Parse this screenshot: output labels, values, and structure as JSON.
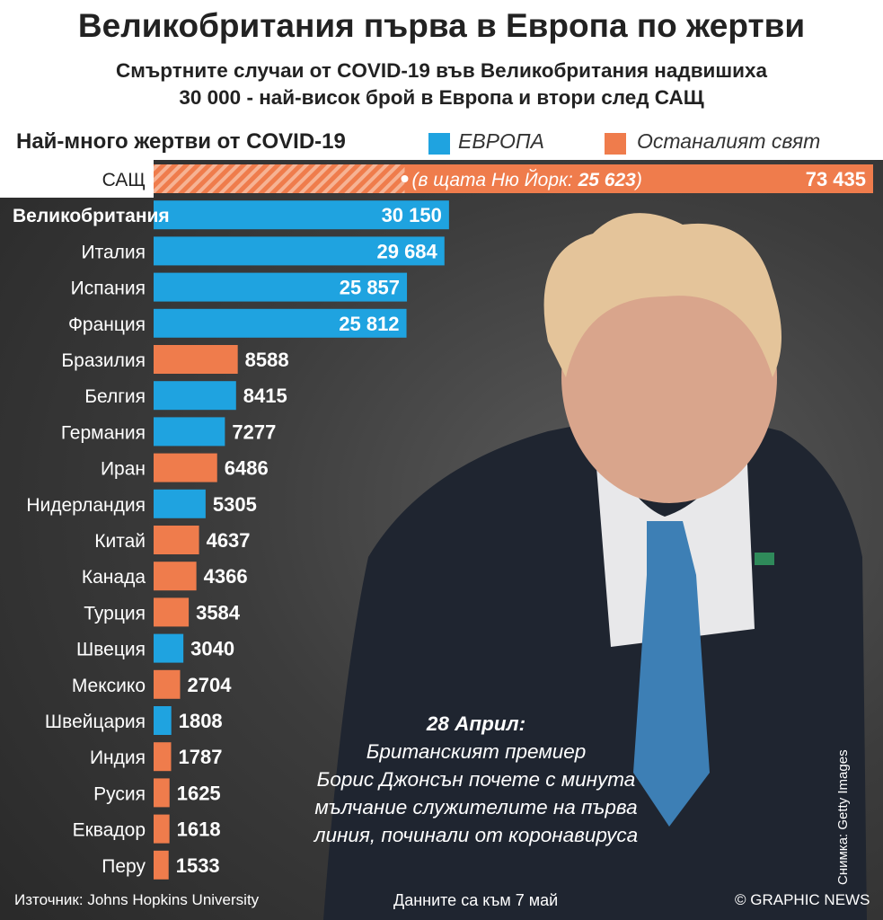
{
  "header": {
    "title": "Великобритания първа в Европа по жертви",
    "subtitle_line1": "Смъртните случаи от COVID-19 във Великобритания надвишиха",
    "subtitle_line2": "30 000 - най-висок брой в Европа и втори след САЩ"
  },
  "legend": {
    "label": "Най-много жертви от COVID-19",
    "europe": "ЕВРОПА",
    "rest": "Останалият свят"
  },
  "colors": {
    "europe": "#1fa3e0",
    "rest": "#ef7c4c"
  },
  "chart_data": {
    "type": "bar",
    "orientation": "horizontal",
    "title": "Най-много жертви от COVID-19",
    "xlim": [
      0,
      73435
    ],
    "categories": [
      "САЩ",
      "Великобритания",
      "Италия",
      "Испания",
      "Франция",
      "Бразилия",
      "Белгия",
      "Германия",
      "Иран",
      "Нидерландия",
      "Китай",
      "Канада",
      "Турция",
      "Швеция",
      "Мексико",
      "Швейцария",
      "Индия",
      "Русия",
      "Еквадор",
      "Перу"
    ],
    "labels": [
      "73 435",
      "30 150",
      "29 684",
      "25 857",
      "25 812",
      "8588",
      "8415",
      "7277",
      "6486",
      "5305",
      "4637",
      "4366",
      "3584",
      "3040",
      "2704",
      "1808",
      "1787",
      "1625",
      "1618",
      "1533"
    ],
    "values": [
      73435,
      30150,
      29684,
      25857,
      25812,
      8588,
      8415,
      7277,
      6486,
      5305,
      4637,
      4366,
      3584,
      3040,
      2704,
      1808,
      1787,
      1625,
      1618,
      1533
    ],
    "region": [
      "rest",
      "europe",
      "europe",
      "europe",
      "europe",
      "rest",
      "europe",
      "europe",
      "rest",
      "europe",
      "rest",
      "rest",
      "rest",
      "europe",
      "rest",
      "europe",
      "rest",
      "rest",
      "rest",
      "rest"
    ],
    "highlight": "Великобритания",
    "annotation": {
      "category": "САЩ",
      "text": "(в щата Ню Йорк: ",
      "value_label": "25 623",
      "close": ")",
      "value": 25623
    }
  },
  "caption": {
    "date": "28 Април:",
    "line1": "Британският премиер",
    "line2": "Борис Джонсън почете с минута",
    "line3": "мълчание служителите на първа",
    "line4": "линия, починали от коронавируса"
  },
  "footer": {
    "source": "Източник: Johns Hopkins University",
    "date_note": "Данните са към 7 май",
    "copyright": "© GRAPHIC NEWS",
    "photo_credit": "Снимка: Getty Images"
  }
}
